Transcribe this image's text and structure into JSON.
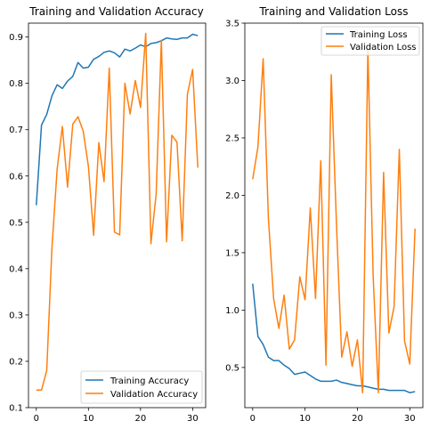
{
  "colors": {
    "training": "#1f77b4",
    "validation": "#ff7f0e"
  },
  "chart_data": [
    {
      "type": "line",
      "title": "Training and Validation Accuracy",
      "xlim": [
        -1.5,
        32.5
      ],
      "ylim": [
        0.1,
        0.93
      ],
      "xticks": [
        0,
        10,
        20,
        30
      ],
      "yticks": [
        0.1,
        0.2,
        0.3,
        0.4,
        0.5,
        0.6,
        0.7,
        0.8,
        0.9
      ],
      "legend": "lower-right",
      "x": [
        0,
        1,
        2,
        3,
        4,
        5,
        6,
        7,
        8,
        9,
        10,
        11,
        12,
        13,
        14,
        15,
        16,
        17,
        18,
        19,
        20,
        21,
        22,
        23,
        24,
        25,
        26,
        27,
        28,
        29,
        30,
        31
      ],
      "series": [
        {
          "name": "Training Accuracy",
          "color": "#1f77b4",
          "values": [
            0.537,
            0.71,
            0.733,
            0.773,
            0.797,
            0.789,
            0.805,
            0.815,
            0.845,
            0.833,
            0.835,
            0.852,
            0.858,
            0.867,
            0.87,
            0.866,
            0.857,
            0.874,
            0.87,
            0.876,
            0.883,
            0.879,
            0.886,
            0.888,
            0.892,
            0.898,
            0.896,
            0.895,
            0.898,
            0.898,
            0.906,
            0.903
          ]
        },
        {
          "name": "Validation Accuracy",
          "color": "#ff7f0e",
          "values": [
            0.138,
            0.138,
            0.18,
            0.445,
            0.615,
            0.707,
            0.576,
            0.712,
            0.728,
            0.697,
            0.621,
            0.472,
            0.672,
            0.588,
            0.833,
            0.479,
            0.473,
            0.8,
            0.734,
            0.806,
            0.748,
            0.908,
            0.454,
            0.561,
            0.893,
            0.458,
            0.688,
            0.673,
            0.46,
            0.777,
            0.83,
            0.618
          ]
        }
      ]
    },
    {
      "type": "line",
      "title": "Training and Validation Loss",
      "xlim": [
        -1.5,
        32.5
      ],
      "ylim": [
        0.15,
        3.5
      ],
      "xticks": [
        0,
        10,
        20,
        30
      ],
      "yticks": [
        0.5,
        1.0,
        1.5,
        2.0,
        2.5,
        3.0,
        3.5
      ],
      "legend": "top-right",
      "x": [
        0,
        1,
        2,
        3,
        4,
        5,
        6,
        7,
        8,
        9,
        10,
        11,
        12,
        13,
        14,
        15,
        16,
        17,
        18,
        19,
        20,
        21,
        22,
        23,
        24,
        25,
        26,
        27,
        28,
        29,
        30,
        31
      ],
      "series": [
        {
          "name": "Training Loss",
          "color": "#1f77b4",
          "values": [
            1.23,
            0.77,
            0.7,
            0.59,
            0.56,
            0.56,
            0.52,
            0.49,
            0.44,
            0.45,
            0.46,
            0.43,
            0.4,
            0.38,
            0.38,
            0.38,
            0.39,
            0.37,
            0.36,
            0.35,
            0.34,
            0.34,
            0.33,
            0.32,
            0.31,
            0.31,
            0.3,
            0.3,
            0.3,
            0.3,
            0.28,
            0.29
          ]
        },
        {
          "name": "Validation Loss",
          "color": "#ff7f0e",
          "values": [
            2.14,
            2.42,
            3.19,
            1.8,
            1.1,
            0.84,
            1.13,
            0.66,
            0.74,
            1.29,
            1.09,
            1.89,
            1.1,
            2.3,
            0.52,
            3.05,
            1.75,
            0.59,
            0.81,
            0.51,
            0.74,
            0.28,
            3.28,
            1.3,
            0.28,
            2.2,
            0.8,
            1.03,
            2.4,
            0.73,
            0.53,
            1.71
          ]
        }
      ]
    }
  ]
}
